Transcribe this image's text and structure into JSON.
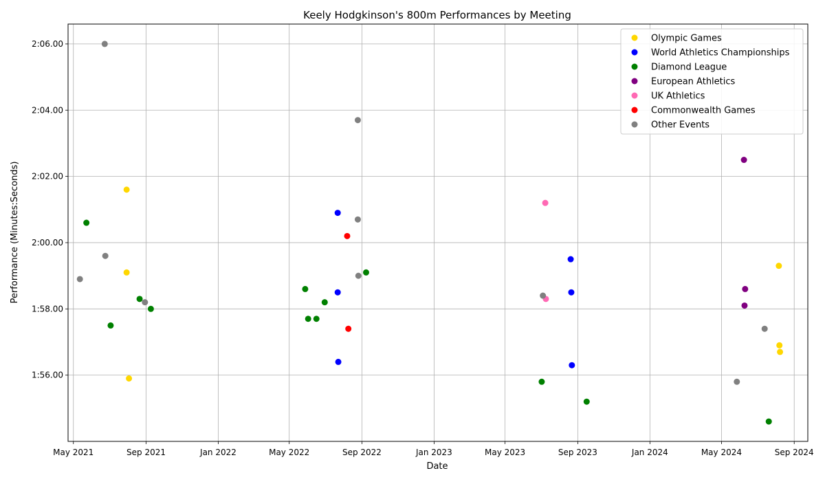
{
  "chart_data": {
    "type": "scatter",
    "title": "Keely Hodgkinson's 800m Performances by Meeting",
    "xlabel": "Date",
    "ylabel": "Performance (Minutes:Seconds)",
    "xlim": [
      "2021-04-22",
      "2024-09-24"
    ],
    "ylim": [
      114.0,
      126.6
    ],
    "grid": true,
    "legend_position": "top-right",
    "x_ticks": [
      {
        "date": "2021-05-01",
        "label": "May 2021"
      },
      {
        "date": "2021-09-01",
        "label": "Sep 2021"
      },
      {
        "date": "2022-01-01",
        "label": "Jan 2022"
      },
      {
        "date": "2022-05-01",
        "label": "May 2022"
      },
      {
        "date": "2022-09-01",
        "label": "Sep 2022"
      },
      {
        "date": "2023-01-01",
        "label": "Jan 2023"
      },
      {
        "date": "2023-05-01",
        "label": "May 2023"
      },
      {
        "date": "2023-09-01",
        "label": "Sep 2023"
      },
      {
        "date": "2024-01-01",
        "label": "Jan 2024"
      },
      {
        "date": "2024-05-01",
        "label": "May 2024"
      },
      {
        "date": "2024-09-01",
        "label": "Sep 2024"
      }
    ],
    "y_ticks": [
      {
        "value": 116,
        "label": "1:56.00"
      },
      {
        "value": 118,
        "label": "1:58.00"
      },
      {
        "value": 120,
        "label": "2:00.00"
      },
      {
        "value": 122,
        "label": "2:02.00"
      },
      {
        "value": 124,
        "label": "2:04.00"
      },
      {
        "value": 126,
        "label": "2:06.00"
      }
    ],
    "series": [
      {
        "name": "Olympic Games",
        "color": "#FFD700",
        "points": [
          {
            "x": "2021-07-30",
            "y": 121.6
          },
          {
            "x": "2021-07-30",
            "y": 119.1
          },
          {
            "x": "2021-08-03",
            "y": 115.9
          },
          {
            "x": "2024-08-06",
            "y": 119.3
          },
          {
            "x": "2024-08-07",
            "y": 116.9
          },
          {
            "x": "2024-08-08",
            "y": 116.7
          }
        ]
      },
      {
        "name": "World Athletics Championships",
        "color": "#0000FF",
        "points": [
          {
            "x": "2022-07-22",
            "y": 120.9
          },
          {
            "x": "2022-07-22",
            "y": 118.5
          },
          {
            "x": "2022-07-23",
            "y": 116.4
          },
          {
            "x": "2023-08-20",
            "y": 119.5
          },
          {
            "x": "2023-08-21",
            "y": 118.5
          },
          {
            "x": "2023-08-22",
            "y": 116.3
          }
        ]
      },
      {
        "name": "Diamond League",
        "color": "#008000",
        "points": [
          {
            "x": "2021-05-23",
            "y": 120.6
          },
          {
            "x": "2021-07-03",
            "y": 117.5
          },
          {
            "x": "2021-08-21",
            "y": 118.3
          },
          {
            "x": "2021-09-09",
            "y": 118.0
          },
          {
            "x": "2022-05-28",
            "y": 118.6
          },
          {
            "x": "2022-06-02",
            "y": 117.7
          },
          {
            "x": "2022-06-16",
            "y": 117.7
          },
          {
            "x": "2022-06-30",
            "y": 118.2
          },
          {
            "x": "2022-09-08",
            "y": 119.1
          },
          {
            "x": "2023-07-02",
            "y": 115.8
          },
          {
            "x": "2023-09-16",
            "y": 115.2
          },
          {
            "x": "2024-07-20",
            "y": 114.6
          }
        ]
      },
      {
        "name": "European Athletics",
        "color": "#800080",
        "points": [
          {
            "x": "2024-06-08",
            "y": 122.5
          },
          {
            "x": "2024-06-10",
            "y": 118.6
          },
          {
            "x": "2024-06-09",
            "y": 118.1
          }
        ]
      },
      {
        "name": "UK Athletics",
        "color": "#FF69B4",
        "points": [
          {
            "x": "2023-07-08",
            "y": 121.2
          },
          {
            "x": "2023-07-09",
            "y": 118.3
          }
        ]
      },
      {
        "name": "Commonwealth Games",
        "color": "#FF0000",
        "points": [
          {
            "x": "2022-08-07",
            "y": 120.2
          },
          {
            "x": "2022-08-09",
            "y": 117.4
          }
        ]
      },
      {
        "name": "Other Events",
        "color": "#808080",
        "points": [
          {
            "x": "2021-05-12",
            "y": 118.9
          },
          {
            "x": "2021-06-23",
            "y": 126.0
          },
          {
            "x": "2021-06-24",
            "y": 119.6
          },
          {
            "x": "2021-08-30",
            "y": 118.2
          },
          {
            "x": "2022-08-25",
            "y": 123.7
          },
          {
            "x": "2022-08-25",
            "y": 120.7
          },
          {
            "x": "2022-08-26",
            "y": 119.0
          },
          {
            "x": "2023-07-04",
            "y": 118.4
          },
          {
            "x": "2024-05-27",
            "y": 115.8
          },
          {
            "x": "2024-07-13",
            "y": 117.4
          }
        ]
      }
    ]
  }
}
